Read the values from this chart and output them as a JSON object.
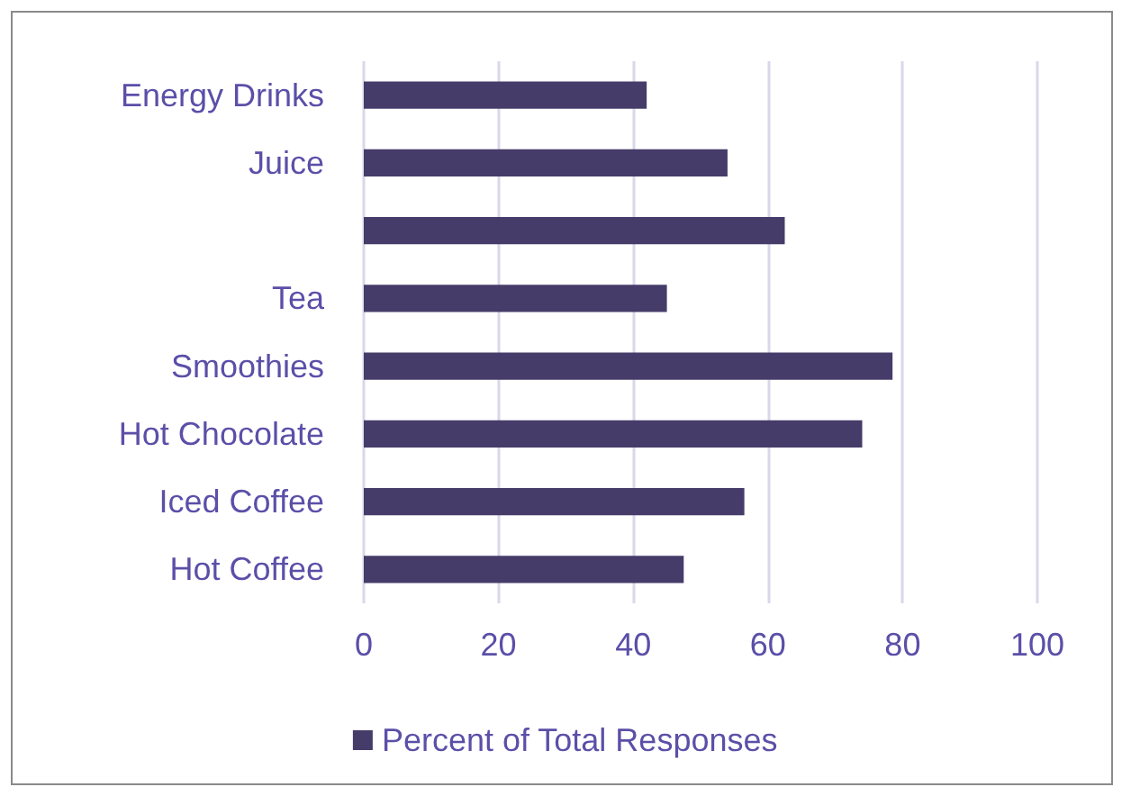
{
  "chart_data": {
    "type": "bar",
    "orientation": "horizontal",
    "categories": [
      "Energy Drinks",
      "Juice",
      null,
      "Tea",
      "Smoothies",
      "Hot Chocolate",
      "Iced Coffee",
      "Hot Coffee"
    ],
    "series": [
      {
        "name": "Percent of Total Responses",
        "color": "#463c6a",
        "values": [
          42,
          54,
          62.5,
          45,
          78.5,
          74,
          56.5,
          47.5
        ]
      }
    ],
    "xlim": [
      0,
      100
    ],
    "xticks": [
      0,
      20,
      40,
      60,
      80,
      100
    ],
    "grid": "x",
    "legend": "bottom"
  }
}
